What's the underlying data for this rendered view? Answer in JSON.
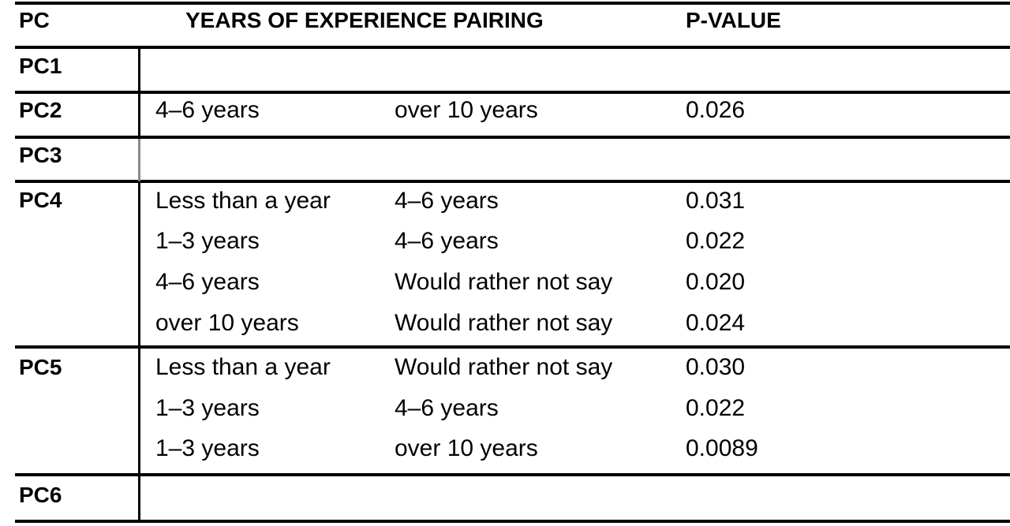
{
  "header": {
    "pc": "PC",
    "pairing": "YEARS OF EXPERIENCE PAIRING",
    "pvalue": "P-VALUE"
  },
  "groups": [
    {
      "pc": "PC1",
      "rows": []
    },
    {
      "pc": "PC2",
      "rows": [
        {
          "a": "4–6 years",
          "b": "over 10 years",
          "p": "0.026"
        }
      ]
    },
    {
      "pc": "PC3",
      "rows": []
    },
    {
      "pc": "PC4",
      "rows": [
        {
          "a": "Less than a year",
          "b": "4–6 years",
          "p": "0.031"
        },
        {
          "a": "1–3 years",
          "b": "4–6 years",
          "p": "0.022"
        },
        {
          "a": "4–6 years",
          "b": "Would rather not say",
          "p": "0.020"
        },
        {
          "a": "over 10 years",
          "b": "Would rather not say",
          "p": "0.024"
        }
      ]
    },
    {
      "pc": "PC5",
      "rows": [
        {
          "a": "Less than a year",
          "b": "Would rather not say",
          "p": "0.030"
        },
        {
          "a": "1–3 years",
          "b": "4–6 years",
          "p": "0.022"
        },
        {
          "a": "1–3 years",
          "b": "over 10 years",
          "p": "0.0089"
        }
      ]
    },
    {
      "pc": "PC6",
      "rows": []
    }
  ]
}
